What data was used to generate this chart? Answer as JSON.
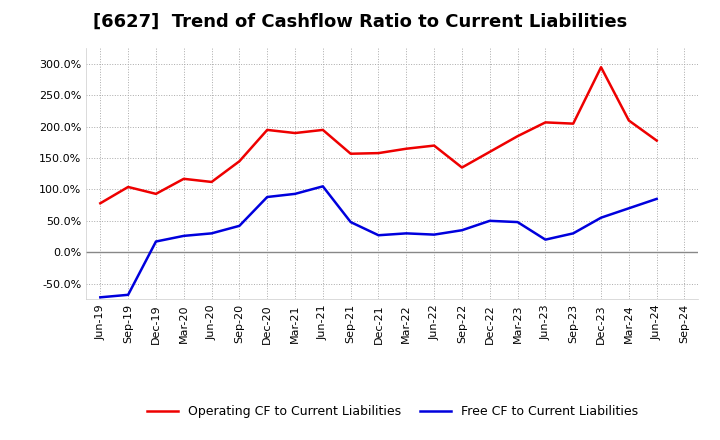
{
  "title": "[6627]  Trend of Cashflow Ratio to Current Liabilities",
  "x_labels": [
    "Jun-19",
    "Sep-19",
    "Dec-19",
    "Mar-20",
    "Jun-20",
    "Sep-20",
    "Dec-20",
    "Mar-21",
    "Jun-21",
    "Sep-21",
    "Dec-21",
    "Mar-22",
    "Jun-22",
    "Sep-22",
    "Dec-22",
    "Mar-23",
    "Jun-23",
    "Sep-23",
    "Dec-23",
    "Mar-24",
    "Jun-24",
    "Sep-24"
  ],
  "operating_cf": [
    0.78,
    1.04,
    0.93,
    1.17,
    1.12,
    1.45,
    1.95,
    1.9,
    1.95,
    1.57,
    1.58,
    1.65,
    1.7,
    1.35,
    1.6,
    1.85,
    2.07,
    2.05,
    2.95,
    2.1,
    1.78,
    null
  ],
  "free_cf": [
    -0.72,
    -0.68,
    0.17,
    0.26,
    0.3,
    0.42,
    0.88,
    0.93,
    1.05,
    0.48,
    0.27,
    0.3,
    0.28,
    0.35,
    0.5,
    0.48,
    0.2,
    0.3,
    0.55,
    0.7,
    0.85,
    null
  ],
  "operating_color": "#ee0000",
  "free_color": "#0000dd",
  "ylim": [
    -0.75,
    3.25
  ],
  "yticks": [
    -0.5,
    0.0,
    0.5,
    1.0,
    1.5,
    2.0,
    2.5,
    3.0
  ],
  "ytick_labels": [
    "-50.0%",
    "0.0%",
    "50.0%",
    "100.0%",
    "150.0%",
    "200.0%",
    "250.0%",
    "300.0%"
  ],
  "legend_op": "Operating CF to Current Liabilities",
  "legend_free": "Free CF to Current Liabilities",
  "bg_color": "#ffffff",
  "plot_bg": "#ffffff",
  "grid_color": "#aaaaaa",
  "zero_line_color": "#888888",
  "title_fontsize": 13,
  "tick_fontsize": 8,
  "legend_fontsize": 9
}
